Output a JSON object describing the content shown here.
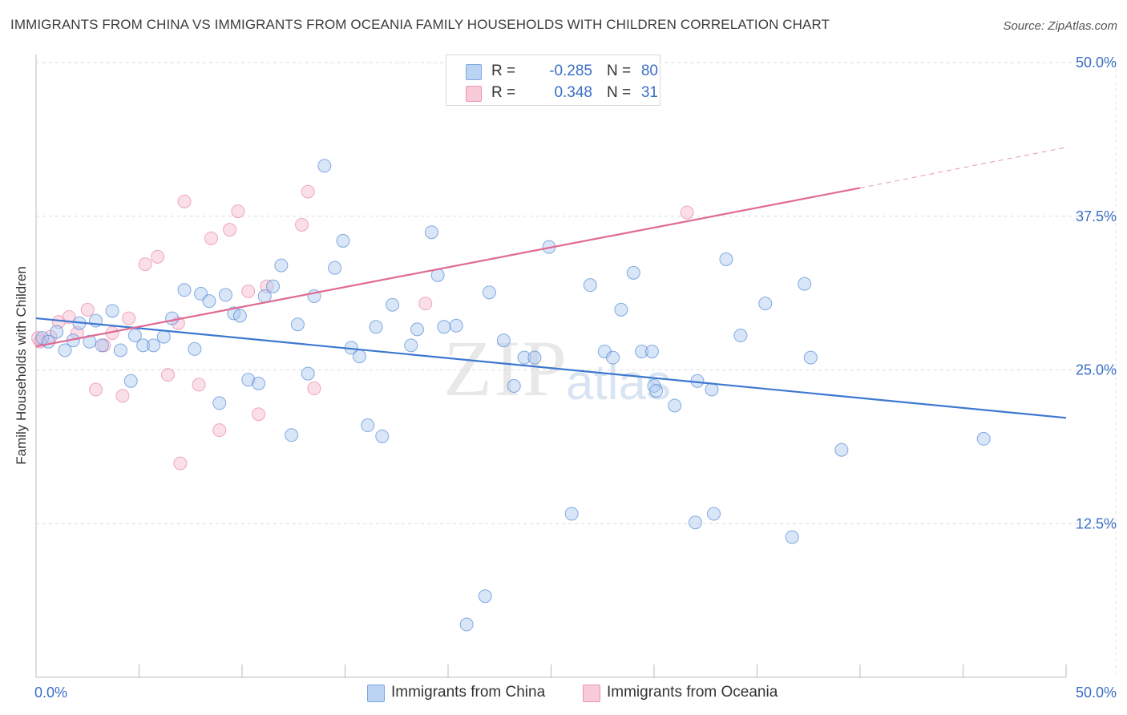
{
  "header": {
    "title": "IMMIGRANTS FROM CHINA VS IMMIGRANTS FROM OCEANIA FAMILY HOUSEHOLDS WITH CHILDREN CORRELATION CHART",
    "source": "Source: ZipAtlas.com"
  },
  "watermark": {
    "zip": "ZIP",
    "atlas": "atlas"
  },
  "legend": {
    "china": {
      "r_label": "R =",
      "r_value": "-0.285",
      "n_label": "N =",
      "n_value": "80",
      "color": "#a9c8f0"
    },
    "oceania": {
      "r_label": "R =",
      "r_value": "0.348",
      "n_label": "N =",
      "n_value": "31",
      "color": "#f7b8cb"
    }
  },
  "bottom_legend": {
    "china": "Immigrants from China",
    "oceania": "Immigrants from Oceania"
  },
  "chart_data": {
    "type": "scatter",
    "title": "IMMIGRANTS FROM CHINA VS IMMIGRANTS FROM OCEANIA FAMILY HOUSEHOLDS WITH CHILDREN CORRELATION CHART",
    "xlabel": "",
    "ylabel": "Family Households with Children",
    "xlim": [
      0,
      50
    ],
    "ylim": [
      0,
      50
    ],
    "x_tick_labels": [
      {
        "value": 0,
        "label": "0.0%"
      },
      {
        "value": 50,
        "label": "50.0%"
      }
    ],
    "y_tick_labels": [
      {
        "value": 12.5,
        "label": "12.5%"
      },
      {
        "value": 25,
        "label": "25.0%"
      },
      {
        "value": 37.5,
        "label": "37.5%"
      },
      {
        "value": 50,
        "label": "50.0%"
      }
    ],
    "grid": "horizontal dashed",
    "colors": {
      "china": "#3d78d0",
      "china_fill": "#a9c8f0",
      "oceania": "#e06a93",
      "oceania_fill": "#f7b8cb"
    },
    "series": [
      {
        "name": "Immigrants from China",
        "trend": {
          "x": [
            0,
            50
          ],
          "y": [
            29.2,
            21.1
          ]
        },
        "points": [
          [
            0.3,
            27.6
          ],
          [
            0.6,
            27.3
          ],
          [
            1.0,
            28.1
          ],
          [
            1.4,
            26.6
          ],
          [
            1.8,
            27.4
          ],
          [
            2.1,
            28.8
          ],
          [
            2.6,
            27.3
          ],
          [
            2.9,
            29.0
          ],
          [
            3.2,
            27.0
          ],
          [
            3.7,
            29.8
          ],
          [
            4.1,
            26.6
          ],
          [
            4.6,
            24.1
          ],
          [
            4.8,
            27.8
          ],
          [
            5.2,
            27.0
          ],
          [
            5.7,
            27.0
          ],
          [
            6.2,
            27.7
          ],
          [
            6.6,
            29.2
          ],
          [
            7.2,
            31.5
          ],
          [
            7.7,
            26.7
          ],
          [
            8.0,
            31.2
          ],
          [
            8.4,
            30.6
          ],
          [
            8.9,
            22.3
          ],
          [
            9.2,
            31.1
          ],
          [
            9.6,
            29.6
          ],
          [
            9.9,
            29.4
          ],
          [
            10.3,
            24.2
          ],
          [
            10.8,
            23.9
          ],
          [
            11.1,
            31.0
          ],
          [
            11.5,
            31.8
          ],
          [
            11.9,
            33.5
          ],
          [
            12.4,
            19.7
          ],
          [
            12.7,
            28.7
          ],
          [
            13.2,
            24.7
          ],
          [
            13.5,
            31.0
          ],
          [
            14.0,
            41.6
          ],
          [
            14.5,
            33.3
          ],
          [
            14.9,
            35.5
          ],
          [
            15.3,
            26.8
          ],
          [
            15.7,
            26.1
          ],
          [
            16.1,
            20.5
          ],
          [
            16.5,
            28.5
          ],
          [
            16.8,
            19.6
          ],
          [
            17.3,
            30.3
          ],
          [
            18.2,
            27.0
          ],
          [
            18.5,
            28.3
          ],
          [
            19.2,
            36.2
          ],
          [
            19.5,
            32.7
          ],
          [
            19.8,
            28.5
          ],
          [
            20.4,
            28.6
          ],
          [
            20.9,
            4.3
          ],
          [
            21.8,
            6.6
          ],
          [
            22.0,
            31.3
          ],
          [
            22.7,
            27.4
          ],
          [
            23.2,
            23.7
          ],
          [
            23.7,
            26.0
          ],
          [
            24.2,
            26.0
          ],
          [
            24.9,
            35.0
          ],
          [
            26.0,
            13.3
          ],
          [
            26.9,
            31.9
          ],
          [
            27.6,
            26.5
          ],
          [
            28.0,
            26.0
          ],
          [
            28.4,
            29.9
          ],
          [
            29.0,
            32.9
          ],
          [
            29.4,
            26.5
          ],
          [
            30.0,
            23.7
          ],
          [
            30.1,
            23.3
          ],
          [
            29.9,
            26.5
          ],
          [
            31.0,
            22.1
          ],
          [
            32.0,
            12.6
          ],
          [
            32.1,
            24.1
          ],
          [
            32.8,
            23.4
          ],
          [
            32.9,
            13.3
          ],
          [
            33.5,
            34.0
          ],
          [
            34.2,
            27.8
          ],
          [
            35.4,
            30.4
          ],
          [
            36.7,
            11.4
          ],
          [
            37.3,
            32.0
          ],
          [
            37.6,
            26.0
          ],
          [
            39.1,
            18.5
          ],
          [
            46.0,
            19.4
          ]
        ]
      },
      {
        "name": "Immigrants from Oceania",
        "trend": {
          "x": [
            0,
            40
          ],
          "y": [
            26.9,
            39.8
          ]
        },
        "trend_dashed": {
          "x": [
            40,
            50
          ],
          "y": [
            39.8,
            43.1
          ]
        },
        "points": [
          [
            0.2,
            27.3
          ],
          [
            0.7,
            27.7
          ],
          [
            1.1,
            28.9
          ],
          [
            1.6,
            29.3
          ],
          [
            2.0,
            28.0
          ],
          [
            2.5,
            29.9
          ],
          [
            2.9,
            23.4
          ],
          [
            3.3,
            27.0
          ],
          [
            3.7,
            28.0
          ],
          [
            4.2,
            22.9
          ],
          [
            4.5,
            29.2
          ],
          [
            5.3,
            33.6
          ],
          [
            5.9,
            34.2
          ],
          [
            6.4,
            24.6
          ],
          [
            6.9,
            28.8
          ],
          [
            7.0,
            17.4
          ],
          [
            7.2,
            38.7
          ],
          [
            7.9,
            23.8
          ],
          [
            8.5,
            35.7
          ],
          [
            8.9,
            20.1
          ],
          [
            9.4,
            36.4
          ],
          [
            9.8,
            37.9
          ],
          [
            10.3,
            31.4
          ],
          [
            10.8,
            21.4
          ],
          [
            11.2,
            31.8
          ],
          [
            12.9,
            36.8
          ],
          [
            13.2,
            39.5
          ],
          [
            13.5,
            23.5
          ],
          [
            18.9,
            30.4
          ],
          [
            31.6,
            37.8
          ],
          [
            0.1,
            27.6
          ]
        ]
      }
    ]
  }
}
